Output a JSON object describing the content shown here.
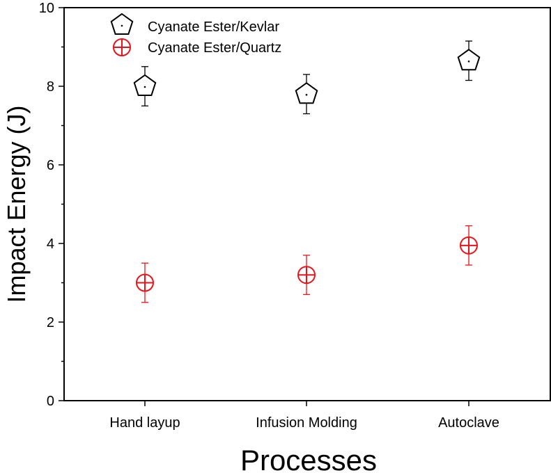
{
  "chart_data": {
    "type": "scatter",
    "xlabel": "Processes",
    "ylabel": "Impact Energy (J)",
    "categories": [
      "Hand layup",
      "Infusion Molding",
      "Autoclave"
    ],
    "ylim": [
      0,
      10
    ],
    "yticks": [
      0,
      2,
      4,
      6,
      8,
      10
    ],
    "grid": false,
    "legend_position": "top-left",
    "series": [
      {
        "name": "Cyanate Ester/Kevlar",
        "color": "#000000",
        "marker": "pentagon",
        "values": [
          8.0,
          7.8,
          8.65
        ],
        "errors": [
          0.5,
          0.5,
          0.5
        ]
      },
      {
        "name": "Cyanate Ester/Quartz",
        "color": "#e8141a",
        "marker": "circle-plus",
        "values": [
          3.0,
          3.2,
          3.95
        ],
        "errors": [
          0.5,
          0.5,
          0.5
        ]
      }
    ]
  }
}
